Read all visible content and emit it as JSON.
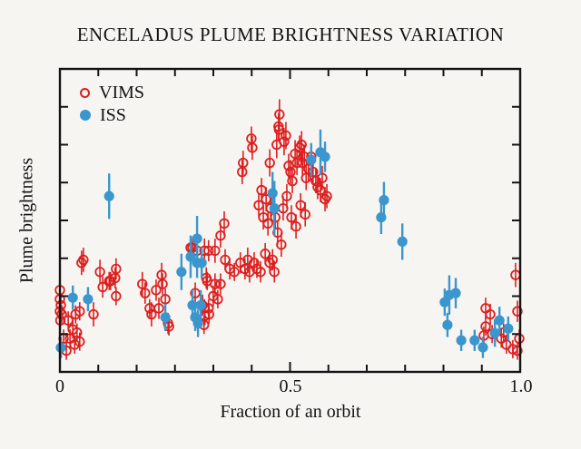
{
  "title": "ENCELADUS PLUME BRIGHTNESS VARIATION",
  "legend": {
    "position": "top-left-inside-plot",
    "items": [
      {
        "label": "VIMS",
        "marker": "open-circle",
        "color": "#dd1f1f"
      },
      {
        "label": "ISS",
        "marker": "filled-circle",
        "color": "#3a96cc"
      }
    ]
  },
  "x_axis": {
    "label": "Fraction of an orbit",
    "tick_labels": [
      "0",
      "0.5",
      "1.0"
    ],
    "tick_values": [
      0,
      0.5,
      1.0
    ],
    "range": [
      0,
      1
    ]
  },
  "y_axis": {
    "label": "Plume brightness",
    "tick_labels": [],
    "note": "axis has tick marks but no numeric labels"
  },
  "colors": {
    "vims": "#dd1f1f",
    "iss": "#3a96cc",
    "axis": "#141414",
    "background": "#f7f5f2",
    "text": "#131313"
  },
  "chart_data": {
    "type": "scatter",
    "title": "ENCELADUS PLUME BRIGHTNESS VARIATION",
    "xlabel": "Fraction of an orbit",
    "ylabel": "Plume brightness",
    "xlim": [
      0,
      1
    ],
    "ylim": [
      0,
      1
    ],
    "grid": false,
    "legend_position": "top-left",
    "error_bars": "vertical, no caps",
    "point_fields": [
      "orbit_fraction",
      "relative_brightness_0_to_1",
      "error_half_range"
    ],
    "x_minor_divisions": 12,
    "y_minor_divisions": 8,
    "series": [
      {
        "name": "VIMS",
        "marker": "open-circle",
        "color": "#dd1f1f",
        "points": [
          [
            0.0,
            0.27,
            0.04
          ],
          [
            0.0,
            0.24,
            0.03
          ],
          [
            0.0,
            0.2,
            0.03
          ],
          [
            0.001,
            0.17,
            0.03
          ],
          [
            0.002,
            0.22,
            0.03
          ],
          [
            0.004,
            0.19,
            0.03
          ],
          [
            0.008,
            0.11,
            0.03
          ],
          [
            0.014,
            0.07,
            0.03
          ],
          [
            0.018,
            0.17,
            0.03
          ],
          [
            0.022,
            0.11,
            0.03
          ],
          [
            0.028,
            0.14,
            0.03
          ],
          [
            0.032,
            0.09,
            0.03
          ],
          [
            0.034,
            0.19,
            0.03
          ],
          [
            0.037,
            0.13,
            0.03
          ],
          [
            0.043,
            0.2,
            0.03
          ],
          [
            0.043,
            0.1,
            0.03
          ],
          [
            0.047,
            0.36,
            0.04
          ],
          [
            0.051,
            0.37,
            0.04
          ],
          [
            0.073,
            0.19,
            0.04
          ],
          [
            0.087,
            0.33,
            0.04
          ],
          [
            0.093,
            0.28,
            0.035
          ],
          [
            0.107,
            0.3,
            0.03
          ],
          [
            0.11,
            0.3,
            0.03
          ],
          [
            0.12,
            0.31,
            0.035
          ],
          [
            0.122,
            0.34,
            0.035
          ],
          [
            0.122,
            0.25,
            0.03
          ],
          [
            0.179,
            0.29,
            0.04
          ],
          [
            0.185,
            0.26,
            0.035
          ],
          [
            0.195,
            0.21,
            0.03
          ],
          [
            0.199,
            0.19,
            0.04
          ],
          [
            0.209,
            0.27,
            0.035
          ],
          [
            0.215,
            0.21,
            0.035
          ],
          [
            0.221,
            0.32,
            0.04
          ],
          [
            0.223,
            0.29,
            0.035
          ],
          [
            0.229,
            0.24,
            0.035
          ],
          [
            0.235,
            0.16,
            0.035
          ],
          [
            0.237,
            0.15,
            0.03
          ],
          [
            0.284,
            0.41,
            0.04
          ],
          [
            0.288,
            0.41,
            0.035
          ],
          [
            0.294,
            0.26,
            0.035
          ],
          [
            0.298,
            0.4,
            0.04
          ],
          [
            0.31,
            0.22,
            0.035
          ],
          [
            0.314,
            0.4,
            0.04
          ],
          [
            0.314,
            0.21,
            0.03
          ],
          [
            0.315,
            0.185,
            0.03
          ],
          [
            0.313,
            0.155,
            0.03
          ],
          [
            0.318,
            0.31,
            0.035
          ],
          [
            0.32,
            0.3,
            0.03
          ],
          [
            0.323,
            0.4,
            0.035
          ],
          [
            0.323,
            0.21,
            0.03
          ],
          [
            0.324,
            0.19,
            0.03
          ],
          [
            0.333,
            0.25,
            0.035
          ],
          [
            0.337,
            0.4,
            0.04
          ],
          [
            0.337,
            0.29,
            0.035
          ],
          [
            0.343,
            0.24,
            0.03
          ],
          [
            0.349,
            0.29,
            0.035
          ],
          [
            0.349,
            0.45,
            0.04
          ],
          [
            0.357,
            0.49,
            0.04
          ],
          [
            0.359,
            0.37,
            0.035
          ],
          [
            0.369,
            0.34,
            0.035
          ],
          [
            0.379,
            0.33,
            0.03
          ],
          [
            0.392,
            0.36,
            0.035
          ],
          [
            0.396,
            0.66,
            0.04
          ],
          [
            0.398,
            0.69,
            0.04
          ],
          [
            0.402,
            0.34,
            0.035
          ],
          [
            0.408,
            0.37,
            0.04
          ],
          [
            0.412,
            0.33,
            0.035
          ],
          [
            0.416,
            0.77,
            0.04
          ],
          [
            0.418,
            0.74,
            0.04
          ],
          [
            0.422,
            0.36,
            0.035
          ],
          [
            0.428,
            0.34,
            0.03
          ],
          [
            0.432,
            0.55,
            0.04
          ],
          [
            0.436,
            0.33,
            0.035
          ],
          [
            0.438,
            0.6,
            0.04
          ],
          [
            0.442,
            0.51,
            0.04
          ],
          [
            0.446,
            0.39,
            0.035
          ],
          [
            0.448,
            0.57,
            0.04
          ],
          [
            0.452,
            0.49,
            0.04
          ],
          [
            0.456,
            0.69,
            0.045
          ],
          [
            0.456,
            0.36,
            0.035
          ],
          [
            0.458,
            0.54,
            0.04
          ],
          [
            0.462,
            0.37,
            0.035
          ],
          [
            0.466,
            0.33,
            0.035
          ],
          [
            0.468,
            0.51,
            0.04
          ],
          [
            0.471,
            0.75,
            0.045
          ],
          [
            0.473,
            0.46,
            0.04
          ],
          [
            0.475,
            0.81,
            0.045
          ],
          [
            0.476,
            0.8,
            0.04
          ],
          [
            0.477,
            0.85,
            0.05
          ],
          [
            0.481,
            0.42,
            0.04
          ],
          [
            0.485,
            0.54,
            0.04
          ],
          [
            0.487,
            0.76,
            0.045
          ],
          [
            0.491,
            0.78,
            0.045
          ],
          [
            0.493,
            0.58,
            0.04
          ],
          [
            0.497,
            0.68,
            0.04
          ],
          [
            0.501,
            0.66,
            0.04
          ],
          [
            0.503,
            0.51,
            0.04
          ],
          [
            0.505,
            0.63,
            0.04
          ],
          [
            0.511,
            0.72,
            0.045
          ],
          [
            0.513,
            0.48,
            0.04
          ],
          [
            0.515,
            0.69,
            0.04
          ],
          [
            0.521,
            0.74,
            0.04
          ],
          [
            0.523,
            0.55,
            0.04
          ],
          [
            0.525,
            0.75,
            0.045
          ],
          [
            0.527,
            0.69,
            0.04
          ],
          [
            0.531,
            0.71,
            0.04
          ],
          [
            0.533,
            0.52,
            0.04
          ],
          [
            0.535,
            0.64,
            0.04
          ],
          [
            0.54,
            0.67,
            0.04
          ],
          [
            0.546,
            0.71,
            0.045
          ],
          [
            0.55,
            0.66,
            0.04
          ],
          [
            0.556,
            0.63,
            0.04
          ],
          [
            0.56,
            0.61,
            0.04
          ],
          [
            0.566,
            0.6,
            0.04
          ],
          [
            0.57,
            0.64,
            0.04
          ],
          [
            0.576,
            0.57,
            0.04
          ],
          [
            0.58,
            0.58,
            0.04
          ],
          [
            0.921,
            0.12,
            0.03
          ],
          [
            0.925,
            0.21,
            0.035
          ],
          [
            0.925,
            0.15,
            0.03
          ],
          [
            0.935,
            0.19,
            0.035
          ],
          [
            0.939,
            0.125,
            0.03
          ],
          [
            0.959,
            0.11,
            0.03
          ],
          [
            0.964,
            0.13,
            0.03
          ],
          [
            0.97,
            0.09,
            0.03
          ],
          [
            0.984,
            0.075,
            0.03
          ],
          [
            0.99,
            0.32,
            0.04
          ],
          [
            0.994,
            0.2,
            0.035
          ],
          [
            0.994,
            0.07,
            0.03
          ],
          [
            0.998,
            0.11,
            0.03
          ]
        ]
      },
      {
        "name": "ISS",
        "marker": "filled-circle",
        "color": "#3a96cc",
        "points": [
          [
            0.002,
            0.08,
            0.035
          ],
          [
            0.028,
            0.245,
            0.04
          ],
          [
            0.061,
            0.24,
            0.04
          ],
          [
            0.107,
            0.58,
            0.075
          ],
          [
            0.229,
            0.18,
            0.045
          ],
          [
            0.264,
            0.33,
            0.06
          ],
          [
            0.284,
            0.38,
            0.07
          ],
          [
            0.288,
            0.22,
            0.05
          ],
          [
            0.294,
            0.18,
            0.045
          ],
          [
            0.298,
            0.44,
            0.075
          ],
          [
            0.298,
            0.36,
            0.05
          ],
          [
            0.3,
            0.16,
            0.045
          ],
          [
            0.306,
            0.22,
            0.05
          ],
          [
            0.308,
            0.36,
            0.05
          ],
          [
            0.462,
            0.59,
            0.07
          ],
          [
            0.466,
            0.54,
            0.09
          ],
          [
            0.546,
            0.7,
            0.055
          ],
          [
            0.566,
            0.725,
            0.075
          ],
          [
            0.576,
            0.71,
            0.05
          ],
          [
            0.698,
            0.51,
            0.055
          ],
          [
            0.704,
            0.567,
            0.06
          ],
          [
            0.744,
            0.43,
            0.06
          ],
          [
            0.836,
            0.23,
            0.045
          ],
          [
            0.842,
            0.155,
            0.04
          ],
          [
            0.846,
            0.254,
            0.065
          ],
          [
            0.86,
            0.26,
            0.05
          ],
          [
            0.872,
            0.104,
            0.035
          ],
          [
            0.901,
            0.104,
            0.035
          ],
          [
            0.919,
            0.081,
            0.035
          ],
          [
            0.945,
            0.128,
            0.045
          ],
          [
            0.955,
            0.17,
            0.045
          ],
          [
            0.974,
            0.143,
            0.04
          ]
        ]
      }
    ]
  }
}
